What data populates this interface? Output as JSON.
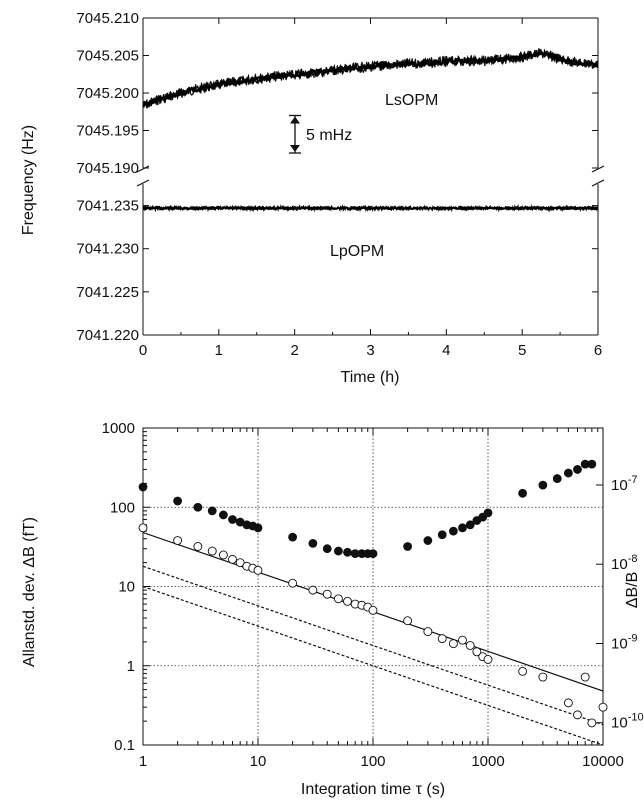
{
  "chart_data": [
    {
      "type": "line",
      "panel": "top",
      "xlabel": "Time (h)",
      "ylabel": "Frequency (Hz)",
      "xlim": [
        0,
        6
      ],
      "x_ticks": [
        "0",
        "1",
        "2",
        "3",
        "4",
        "5",
        "6"
      ],
      "broken_y_axis": true,
      "upper_axis": {
        "ylim": [
          7045.19,
          7045.21
        ],
        "y_ticks": [
          "7045.210",
          "7045.205",
          "7045.200",
          "7045.195",
          "7045.190"
        ]
      },
      "lower_axis": {
        "ylim": [
          7041.22,
          7041.2375
        ],
        "y_ticks": [
          "7041.235",
          "7041.230",
          "7041.225",
          "7041.220"
        ]
      },
      "series": [
        {
          "name": "LsOPM",
          "axis": "upper",
          "x": [
            0,
            0.25,
            0.5,
            0.75,
            1,
            1.25,
            1.5,
            1.75,
            2,
            2.25,
            2.5,
            2.75,
            3,
            3.25,
            3.5,
            3.75,
            4,
            4.25,
            4.5,
            4.75,
            5,
            5.25,
            5.5,
            5.75,
            6
          ],
          "y": [
            7045.1983,
            7045.1993,
            7045.2,
            7045.2006,
            7045.2011,
            7045.2015,
            7045.2019,
            7045.2022,
            7045.2024,
            7045.2027,
            7045.203,
            7045.2033,
            7045.2035,
            7045.2037,
            7045.2039,
            7045.204,
            7045.2042,
            7045.2043,
            7045.2043,
            7045.2045,
            7045.2048,
            7045.2053,
            7045.2045,
            7045.204,
            7045.2038
          ]
        },
        {
          "name": "LpOPM",
          "axis": "lower",
          "x": [
            0,
            1,
            2,
            3,
            4,
            5,
            6
          ],
          "y": [
            7041.2347,
            7041.2347,
            7041.2347,
            7041.2347,
            7041.2347,
            7041.2347,
            7041.2347
          ]
        }
      ],
      "annotations": {
        "scale_bar": "5 mHz",
        "scale_bar_value_hz": 0.005
      }
    },
    {
      "type": "scatter",
      "panel": "bottom",
      "xlabel": "Integration time τ (s)",
      "ylabel": "Allanstd. dev. ΔB (fT)",
      "y2label": "ΔB/B",
      "xscale": "log",
      "yscale": "log",
      "xlim": [
        1,
        10000
      ],
      "ylim": [
        0.1,
        1000
      ],
      "x_ticks": [
        "1",
        "10",
        "100",
        "1000",
        "10000"
      ],
      "y_ticks": [
        "0.1",
        "1",
        "10",
        "100",
        "1000"
      ],
      "y2_ticks": [
        {
          "label": "10",
          "exp": "-7",
          "value_ft": 191
        },
        {
          "label": "10",
          "exp": "-8",
          "value_ft": 19.1
        },
        {
          "label": "10",
          "exp": "-9",
          "value_ft": 1.91
        },
        {
          "label": "10",
          "exp": "-10",
          "value_ft": 0.191
        }
      ],
      "grid": true,
      "series": [
        {
          "marker": "filled-circle",
          "x": [
            1,
            2,
            3,
            4,
            5,
            6,
            7,
            8,
            9,
            10,
            20,
            30,
            40,
            50,
            60,
            70,
            80,
            90,
            100,
            200,
            300,
            400,
            500,
            600,
            700,
            800,
            900,
            1000,
            2000,
            3000,
            4000,
            5000,
            6000,
            7000,
            8000
          ],
          "y": [
            180,
            120,
            100,
            90,
            80,
            70,
            65,
            60,
            58,
            55,
            42,
            35,
            30,
            28,
            27,
            26,
            26,
            26,
            26,
            32,
            38,
            45,
            50,
            55,
            60,
            68,
            75,
            85,
            150,
            190,
            230,
            270,
            300,
            350,
            350
          ]
        },
        {
          "marker": "open-circle",
          "x": [
            1,
            2,
            3,
            4,
            5,
            6,
            7,
            8,
            9,
            10,
            20,
            30,
            40,
            50,
            60,
            70,
            80,
            90,
            100,
            200,
            300,
            400,
            500,
            600,
            700,
            800,
            900,
            1000,
            2000,
            3000,
            5000,
            6000,
            7000,
            8000,
            10000
          ],
          "y": [
            55,
            38,
            32,
            28,
            25,
            22,
            20,
            18,
            17,
            16,
            11,
            9,
            8,
            7,
            6.5,
            6,
            5.8,
            5.5,
            5,
            3.7,
            2.7,
            2.2,
            1.9,
            2.1,
            1.8,
            1.5,
            1.3,
            1.2,
            0.85,
            0.72,
            0.34,
            0.24,
            0.72,
            0.19,
            0.3
          ]
        },
        {
          "style": "solid-line",
          "x": [
            1,
            10000
          ],
          "y": [
            48,
            0.48
          ]
        },
        {
          "style": "dashed-line",
          "x": [
            1,
            10000
          ],
          "y": [
            18,
            0.18
          ]
        },
        {
          "style": "dashed-line",
          "x": [
            1,
            10000
          ],
          "y": [
            10,
            0.1
          ]
        }
      ]
    }
  ]
}
